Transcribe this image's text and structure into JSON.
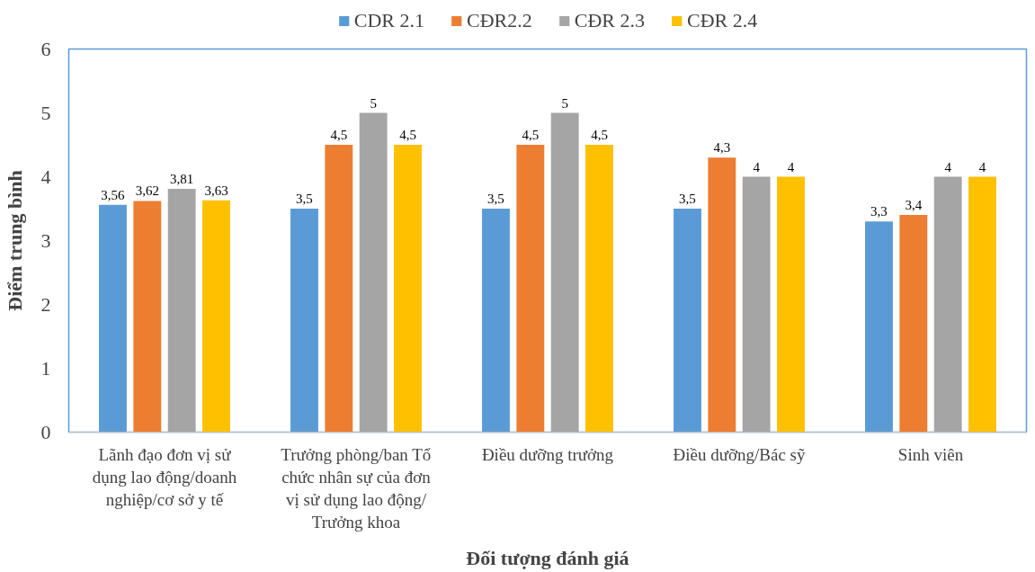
{
  "chart_data": {
    "type": "bar",
    "xlabel": "Đối tượng đánh giá",
    "ylabel": "Điểm trung bình",
    "categories": [
      "Lãnh đạo đơn vị sử dụng lao động/doanh nghiệp/cơ sở y tế",
      "Trưởng phòng/ban Tổ chức nhân sự của đơn vị sử dụng lao động/ Trưởng khoa",
      "Điều dưỡng trưởng",
      "Điều dưỡng/Bác sỹ",
      "Sinh viên"
    ],
    "series": [
      {
        "name": "CDR 2.1",
        "color": "#5b9bd5",
        "values": [
          3.56,
          3.5,
          3.5,
          3.5,
          3.3
        ],
        "value_labels": [
          "3,56",
          "3,5",
          "3,5",
          "3,5",
          "3,3"
        ]
      },
      {
        "name": "CĐR2.2",
        "color": "#ed7d31",
        "values": [
          3.62,
          4.5,
          4.5,
          4.3,
          3.4
        ],
        "value_labels": [
          "3,62",
          "4,5",
          "4,5",
          "4,3",
          "3,4"
        ]
      },
      {
        "name": "CĐR 2.3",
        "color": "#a5a5a5",
        "values": [
          3.81,
          5,
          5,
          4,
          4
        ],
        "value_labels": [
          "3,81",
          "5",
          "5",
          "4",
          "4"
        ]
      },
      {
        "name": "CĐR 2.4",
        "color": "#ffc000",
        "values": [
          3.63,
          4.5,
          4.5,
          4,
          4
        ],
        "value_labels": [
          "3,63",
          "4,5",
          "4,5",
          "4",
          "4"
        ]
      }
    ],
    "ylim": [
      0,
      6
    ],
    "yticks": [
      0,
      1,
      2,
      3,
      4,
      5,
      6
    ],
    "grid": false,
    "legend": "top"
  }
}
